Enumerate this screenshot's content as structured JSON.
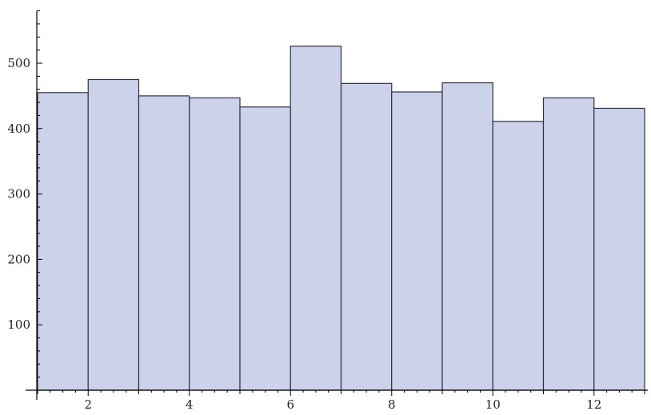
{
  "chart_data": {
    "type": "bar",
    "chart_kind": "histogram",
    "bins": [
      {
        "start": 1,
        "end": 2,
        "value": 455
      },
      {
        "start": 2,
        "end": 3,
        "value": 475
      },
      {
        "start": 3,
        "end": 4,
        "value": 450
      },
      {
        "start": 4,
        "end": 5,
        "value": 447
      },
      {
        "start": 5,
        "end": 6,
        "value": 433
      },
      {
        "start": 6,
        "end": 7,
        "value": 526
      },
      {
        "start": 7,
        "end": 8,
        "value": 469
      },
      {
        "start": 8,
        "end": 9,
        "value": 456
      },
      {
        "start": 9,
        "end": 10,
        "value": 470
      },
      {
        "start": 10,
        "end": 11,
        "value": 411
      },
      {
        "start": 11,
        "end": 12,
        "value": 447
      },
      {
        "start": 12,
        "end": 13,
        "value": 431
      }
    ],
    "xlim": [
      1,
      13
    ],
    "ylim": [
      0,
      580
    ],
    "x_tick_labels": [
      "2",
      "4",
      "6",
      "8",
      "10",
      "12"
    ],
    "y_tick_labels": [
      "100",
      "200",
      "300",
      "400",
      "500"
    ],
    "x_minor_step": 0.25,
    "y_minor_step": 20,
    "title": "",
    "xlabel": "",
    "ylabel": "",
    "grid": false,
    "colors": {
      "bar_fill": "#cdd2eb",
      "bar_stroke": "#2f3140",
      "axis": "#000000"
    }
  }
}
